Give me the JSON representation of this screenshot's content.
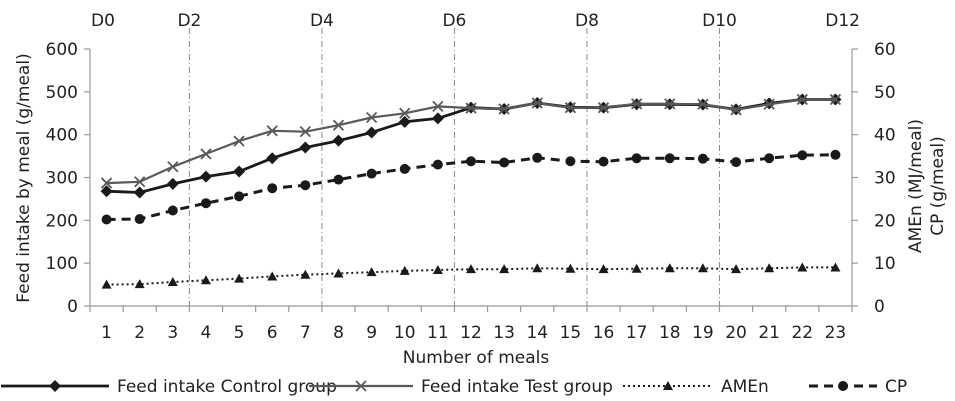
{
  "chart_data": {
    "type": "line",
    "title": "",
    "xlabel": "Number of meals",
    "ylabel_left": "Feed intake by meal (g/meal)",
    "ylabel_right_1": "AMEn (MJ/meal)",
    "ylabel_right_2": "CP (g/meal)",
    "x": [
      1,
      2,
      3,
      4,
      5,
      6,
      7,
      8,
      9,
      10,
      11,
      12,
      13,
      14,
      15,
      16,
      17,
      18,
      19,
      20,
      21,
      22,
      23
    ],
    "x_tick_labels": [
      "1",
      "2",
      "3",
      "4",
      "5",
      "6",
      "7",
      "8",
      "9",
      "10",
      "11",
      "12",
      "13",
      "14",
      "15",
      "16",
      "17",
      "18",
      "19",
      "20",
      "21",
      "22",
      "23"
    ],
    "ylim_left": [
      0,
      600
    ],
    "ylim_right": [
      0,
      60
    ],
    "y_ticks_left": [
      "0",
      "100",
      "200",
      "300",
      "400",
      "500",
      "600"
    ],
    "y_ticks_right": [
      "0",
      "10",
      "20",
      "30",
      "40",
      "50",
      "60"
    ],
    "grid": false,
    "legend_position": "bottom",
    "day_markers": [
      {
        "label": "D0",
        "x": 0.5,
        "line": false
      },
      {
        "label": "D2",
        "x": 3.5,
        "line": true
      },
      {
        "label": "D4",
        "x": 7.5,
        "line": true
      },
      {
        "label": "D6",
        "x": 11.5,
        "line": true
      },
      {
        "label": "D8",
        "x": 15.5,
        "line": true
      },
      {
        "label": "D10",
        "x": 19.5,
        "line": true
      },
      {
        "label": "D12",
        "x": 23.5,
        "line": false
      }
    ],
    "series": [
      {
        "name": "Feed intake Control group",
        "axis": "left",
        "color": "#1a1a1a",
        "style": "solid",
        "marker": "diamond",
        "values": [
          268,
          265,
          285,
          302,
          314,
          345,
          370,
          386,
          405,
          430,
          438,
          463,
          460,
          474,
          464,
          463,
          471,
          471,
          470,
          459,
          473,
          482,
          482
        ]
      },
      {
        "name": "Feed intake Test group",
        "axis": "left",
        "color": "#595959",
        "style": "solid",
        "marker": "x",
        "values": [
          287,
          290,
          325,
          355,
          385,
          409,
          407,
          422,
          440,
          450,
          466,
          462,
          460,
          474,
          463,
          463,
          472,
          472,
          471,
          458,
          471,
          482,
          482
        ]
      },
      {
        "name": "AMEn",
        "axis": "right",
        "color": "#1a1a1a",
        "style": "dotted",
        "marker": "triangle",
        "values": [
          5.0,
          5.1,
          5.6,
          6.0,
          6.4,
          6.9,
          7.3,
          7.6,
          7.9,
          8.2,
          8.4,
          8.6,
          8.6,
          8.8,
          8.7,
          8.6,
          8.7,
          8.8,
          8.8,
          8.6,
          8.8,
          9.0,
          9.0
        ]
      },
      {
        "name": "CP",
        "axis": "right",
        "color": "#1a1a1a",
        "style": "dashed",
        "marker": "circle",
        "values": [
          20.2,
          20.3,
          22.3,
          24.0,
          25.6,
          27.5,
          28.2,
          29.5,
          30.9,
          32.0,
          33.0,
          33.8,
          33.5,
          34.6,
          33.8,
          33.7,
          34.5,
          34.5,
          34.4,
          33.6,
          34.5,
          35.2,
          35.3
        ]
      }
    ]
  },
  "colors": {
    "axis": "#999999",
    "marker_line": "#888888"
  }
}
